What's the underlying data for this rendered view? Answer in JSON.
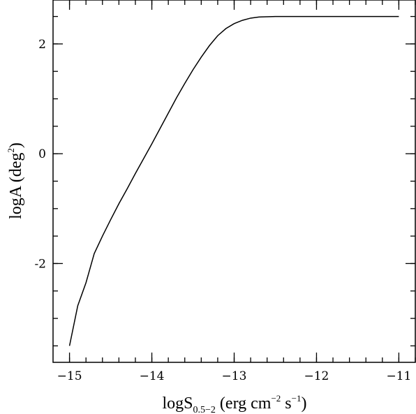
{
  "chart_data": {
    "type": "line",
    "xlabel": {
      "main": "logS",
      "sub": "0.5−2",
      "pre": " (erg cm",
      "sup1": "−2",
      "mid": " s",
      "sup2": "−1",
      "post": ")"
    },
    "ylabel": {
      "main": "logA (deg",
      "sup": "2",
      "post": ")"
    },
    "xlim": [
      -15.2,
      -10.8
    ],
    "ylim": [
      -3.8,
      2.8
    ],
    "xticks": [
      {
        "value": -15,
        "label": "−15"
      },
      {
        "value": -14,
        "label": "−14"
      },
      {
        "value": -13,
        "label": "−13"
      },
      {
        "value": -12,
        "label": "−12"
      },
      {
        "value": -11,
        "label": "−11"
      }
    ],
    "yticks": [
      {
        "value": 2,
        "label": "2"
      },
      {
        "value": 0,
        "label": "0"
      },
      {
        "value": -2,
        "label": "-2"
      }
    ],
    "x_minor_step": 0.2,
    "y_minor_step": 0.5,
    "series": [
      {
        "color": "#000000",
        "x": [
          -15.0,
          -14.9,
          -14.8,
          -14.7,
          -14.6,
          -14.5,
          -14.4,
          -14.3,
          -14.2,
          -14.1,
          -14.0,
          -13.9,
          -13.8,
          -13.7,
          -13.6,
          -13.5,
          -13.4,
          -13.3,
          -13.2,
          -13.1,
          -13.0,
          -12.9,
          -12.8,
          -12.7,
          -12.6,
          -12.5,
          -12.4,
          -12.3,
          -12.0,
          -11.5,
          -11.0
        ],
        "y": [
          -3.5,
          -2.77,
          -2.35,
          -1.82,
          -1.5,
          -1.2,
          -0.91,
          -0.64,
          -0.36,
          -0.09,
          0.18,
          0.46,
          0.74,
          1.02,
          1.28,
          1.53,
          1.76,
          1.97,
          2.15,
          2.28,
          2.37,
          2.43,
          2.47,
          2.49,
          2.495,
          2.5,
          2.5,
          2.5,
          2.5,
          2.5,
          2.5
        ]
      }
    ]
  }
}
